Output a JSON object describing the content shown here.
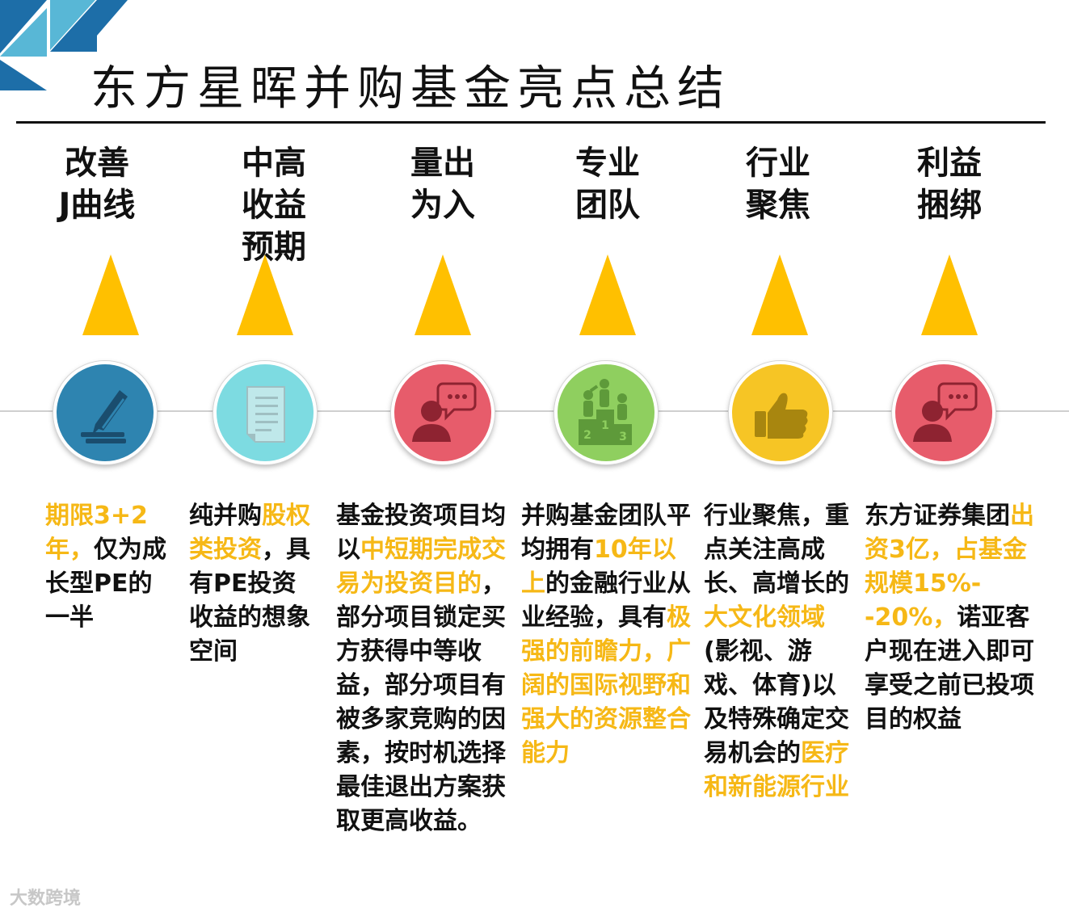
{
  "title": "东方星晖并购基金亮点总结",
  "colors": {
    "accent": "#f6b816",
    "logo_blue": "#1d6ea8",
    "logo_teal": "#58b7d6"
  },
  "watermark": "大数跨境",
  "columns": [
    {
      "heading": [
        "改善",
        "J曲线"
      ],
      "icon": "pencil-paper-icon",
      "circle_color": "#2e84b0",
      "desc": [
        {
          "t": "期限3+2年，",
          "hl": true
        },
        {
          "t": "仅为成长型PE的一半",
          "hl": false
        }
      ]
    },
    {
      "heading": [
        "中高",
        "收益",
        "预期"
      ],
      "icon": "document-icon",
      "circle_color": "#7ddbe1",
      "desc": [
        {
          "t": "纯并购",
          "hl": false
        },
        {
          "t": "股权类投资",
          "hl": true
        },
        {
          "t": "，具有PE投资收益的想象空间",
          "hl": false
        }
      ]
    },
    {
      "heading": [
        "量出",
        "为入"
      ],
      "icon": "person-chat-icon",
      "circle_color": "#e75c6b",
      "desc": [
        {
          "t": "基金投资项目均以",
          "hl": false
        },
        {
          "t": "中短期完成交易为投资目的",
          "hl": true
        },
        {
          "t": "，部分项目锁定买方获得中等收益，部分项目有被多家竞购的因素，按时机选择最佳退出方案获取更高收益。",
          "hl": false
        }
      ]
    },
    {
      "heading": [
        "专业",
        "团队"
      ],
      "icon": "podium-icon",
      "circle_color": "#8fcf5f",
      "desc": [
        {
          "t": "并购基金团队平均拥有",
          "hl": false
        },
        {
          "t": "10年以上",
          "hl": true
        },
        {
          "t": "的金融行业从业经验，具有",
          "hl": false
        },
        {
          "t": "极强的前瞻力，广阔的国际视野和强大的资源整合能力",
          "hl": true
        }
      ]
    },
    {
      "heading": [
        "行业",
        "聚焦"
      ],
      "icon": "thumbs-up-icon",
      "circle_color": "#f6c525",
      "desc": [
        {
          "t": "行业聚焦，重点关注高成长、高增长的",
          "hl": false
        },
        {
          "t": "大文化领域",
          "hl": true
        },
        {
          "t": "(影视、游戏、体育)以及特殊确定交易机会的",
          "hl": false
        },
        {
          "t": "医疗和新能源行业",
          "hl": true
        }
      ]
    },
    {
      "heading": [
        "利益",
        "捆绑"
      ],
      "icon": "person-chat-icon",
      "circle_color": "#e75c6b",
      "desc": [
        {
          "t": "东方证券集团",
          "hl": false
        },
        {
          "t": "出资3亿，占基金规模15%--20%，",
          "hl": true
        },
        {
          "t": "诺亚客户现在进入即可享受之前已投项目的权益",
          "hl": false
        }
      ]
    }
  ]
}
